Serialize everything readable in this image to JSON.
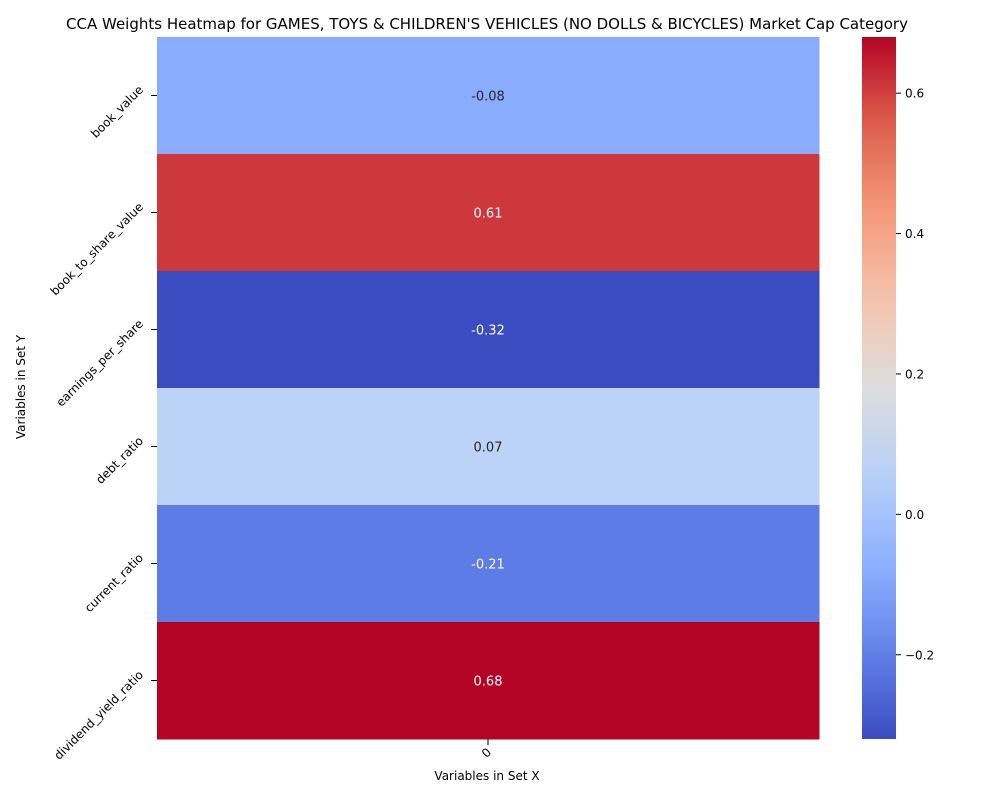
{
  "chart_data": {
    "type": "heatmap",
    "title": "CCA Weights Heatmap for GAMES, TOYS & CHILDREN'S VEHICLES (NO DOLLS & BICYCLES) Market Cap Category",
    "xlabel": "Variables in Set X",
    "ylabel": "Variables in Set Y",
    "x_categories": [
      "0"
    ],
    "y_categories": [
      "book_value",
      "book_to_share_value",
      "earnings_per_share",
      "debt_ratio",
      "current_ratio",
      "dividend_yield_ratio"
    ],
    "values": [
      [
        -0.08
      ],
      [
        0.61
      ],
      [
        -0.32
      ],
      [
        0.07
      ],
      [
        -0.21
      ],
      [
        0.68
      ]
    ],
    "value_labels": [
      "-0.08",
      "0.61",
      "-0.32",
      "0.07",
      "-0.21",
      "0.68"
    ],
    "colormap": "coolwarm",
    "colorbar": {
      "range": [
        -0.32,
        0.68
      ],
      "ticks": [
        -0.2,
        0.0,
        0.2,
        0.4,
        0.6
      ],
      "tick_labels": [
        "−0.2",
        "0.0",
        "0.2",
        "0.4",
        "0.6"
      ]
    },
    "grid": false,
    "legend": "colorbar-right"
  }
}
